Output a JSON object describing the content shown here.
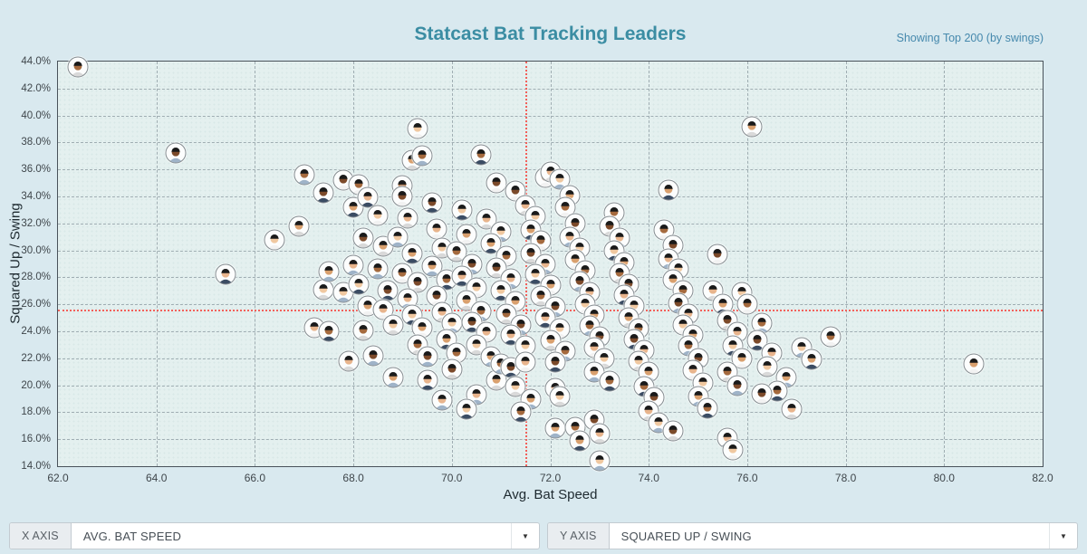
{
  "header": {
    "title": "Statcast Bat Tracking Leaders",
    "subtitle": "Showing Top 200 (by swings)",
    "title_color": "#3b8da3",
    "subtitle_color": "#4689ad"
  },
  "controls": {
    "x_axis": {
      "label": "X AXIS",
      "value": "AVG. BAT SPEED"
    },
    "y_axis": {
      "label": "Y AXIS",
      "value": "SQUARED UP / SWING"
    }
  },
  "chart_data": {
    "type": "scatter",
    "title": "Statcast Bat Tracking Leaders",
    "xlabel": "Avg. Bat Speed",
    "ylabel": "Squared Up / Swing",
    "xlim": [
      62,
      82
    ],
    "ylim": [
      14,
      44
    ],
    "x_ticks": [
      "62.0",
      "64.0",
      "66.0",
      "68.0",
      "70.0",
      "72.0",
      "74.0",
      "76.0",
      "78.0",
      "80.0",
      "82.0"
    ],
    "y_ticks": [
      "44.0%",
      "42.0%",
      "40.0%",
      "38.0%",
      "36.0%",
      "34.0%",
      "32.0%",
      "30.0%",
      "28.0%",
      "26.0%",
      "24.0%",
      "22.0%",
      "20.0%",
      "18.0%",
      "16.0%",
      "14.0%"
    ],
    "grid": true,
    "legend": "none",
    "marker": "player-headshot-circle",
    "mean_lines": {
      "x": 71.5,
      "y": 25.6,
      "color": "#f2605a",
      "style": "dotted"
    },
    "points": [
      [
        62.4,
        43.6
      ],
      [
        64.4,
        37.2
      ],
      [
        65.4,
        28.2
      ],
      [
        66.4,
        30.8
      ],
      [
        66.9,
        31.8
      ],
      [
        67.0,
        35.6
      ],
      [
        67.4,
        34.3
      ],
      [
        67.2,
        24.3
      ],
      [
        67.4,
        27.1
      ],
      [
        67.5,
        28.4
      ],
      [
        67.5,
        24.0
      ],
      [
        67.8,
        35.2
      ],
      [
        67.9,
        21.8
      ],
      [
        67.8,
        26.9
      ],
      [
        68.0,
        33.2
      ],
      [
        68.1,
        34.9
      ],
      [
        68.2,
        30.9
      ],
      [
        68.0,
        28.9
      ],
      [
        68.1,
        27.5
      ],
      [
        68.3,
        25.9
      ],
      [
        68.2,
        24.1
      ],
      [
        68.4,
        22.2
      ],
      [
        68.3,
        33.9
      ],
      [
        68.5,
        32.6
      ],
      [
        68.6,
        30.3
      ],
      [
        68.5,
        28.6
      ],
      [
        68.7,
        27.0
      ],
      [
        68.6,
        25.6
      ],
      [
        68.8,
        24.5
      ],
      [
        68.8,
        20.6
      ],
      [
        69.0,
        34.8
      ],
      [
        69.0,
        34.0
      ],
      [
        69.1,
        32.4
      ],
      [
        68.9,
        31.0
      ],
      [
        69.2,
        29.8
      ],
      [
        69.0,
        28.3
      ],
      [
        69.3,
        27.6
      ],
      [
        69.1,
        26.4
      ],
      [
        69.2,
        25.2
      ],
      [
        69.4,
        24.3
      ],
      [
        69.3,
        23.0
      ],
      [
        69.5,
        22.1
      ],
      [
        69.5,
        20.4
      ],
      [
        69.3,
        39.0
      ],
      [
        69.2,
        36.7
      ],
      [
        69.4,
        37.0
      ],
      [
        69.6,
        33.5
      ],
      [
        69.7,
        31.6
      ],
      [
        69.8,
        30.2
      ],
      [
        69.6,
        28.8
      ],
      [
        69.9,
        27.8
      ],
      [
        69.7,
        26.6
      ],
      [
        69.8,
        25.4
      ],
      [
        70.0,
        24.6
      ],
      [
        69.9,
        23.4
      ],
      [
        70.1,
        22.4
      ],
      [
        70.0,
        21.2
      ],
      [
        70.5,
        19.3
      ],
      [
        70.2,
        33.0
      ],
      [
        70.3,
        31.2
      ],
      [
        70.1,
        29.9
      ],
      [
        70.4,
        29.0
      ],
      [
        70.2,
        28.1
      ],
      [
        70.5,
        27.2
      ],
      [
        70.3,
        26.3
      ],
      [
        70.6,
        25.5
      ],
      [
        70.4,
        24.7
      ],
      [
        70.7,
        23.9
      ],
      [
        70.5,
        23.0
      ],
      [
        70.8,
        22.1
      ],
      [
        70.6,
        37.1
      ],
      [
        70.9,
        35.0
      ],
      [
        70.7,
        32.3
      ],
      [
        71.0,
        31.4
      ],
      [
        70.8,
        30.5
      ],
      [
        71.1,
        29.6
      ],
      [
        70.9,
        28.7
      ],
      [
        71.2,
        27.9
      ],
      [
        71.0,
        27.0
      ],
      [
        71.3,
        26.2
      ],
      [
        71.1,
        25.3
      ],
      [
        71.4,
        24.5
      ],
      [
        71.2,
        23.7
      ],
      [
        71.5,
        22.9
      ],
      [
        70.9,
        20.4
      ],
      [
        71.0,
        21.6
      ],
      [
        71.2,
        21.3
      ],
      [
        71.5,
        21.7
      ],
      [
        71.3,
        19.9
      ],
      [
        71.6,
        19.0
      ],
      [
        71.4,
        18.0
      ],
      [
        71.3,
        34.4
      ],
      [
        71.5,
        33.3
      ],
      [
        71.7,
        32.5
      ],
      [
        71.6,
        31.5
      ],
      [
        71.8,
        30.7
      ],
      [
        71.6,
        29.8
      ],
      [
        71.9,
        29.0
      ],
      [
        71.7,
        28.2
      ],
      [
        72.0,
        27.4
      ],
      [
        71.8,
        26.6
      ],
      [
        72.1,
        25.8
      ],
      [
        71.9,
        25.0
      ],
      [
        72.2,
        24.2
      ],
      [
        72.0,
        23.3
      ],
      [
        72.3,
        22.5
      ],
      [
        72.1,
        21.7
      ],
      [
        72.1,
        19.8
      ],
      [
        72.2,
        19.2
      ],
      [
        72.1,
        16.8
      ],
      [
        72.5,
        16.9
      ],
      [
        71.9,
        35.4
      ],
      [
        72.0,
        35.8
      ],
      [
        72.2,
        35.3
      ],
      [
        72.4,
        34.1
      ],
      [
        72.3,
        33.2
      ],
      [
        72.5,
        32.0
      ],
      [
        72.4,
        31.0
      ],
      [
        72.6,
        30.2
      ],
      [
        72.5,
        29.3
      ],
      [
        72.7,
        28.5
      ],
      [
        72.6,
        27.7
      ],
      [
        72.8,
        26.9
      ],
      [
        72.7,
        26.0
      ],
      [
        72.9,
        25.2
      ],
      [
        72.8,
        24.4
      ],
      [
        73.0,
        23.6
      ],
      [
        72.9,
        22.8
      ],
      [
        73.1,
        22.0
      ],
      [
        72.9,
        21.0
      ],
      [
        73.2,
        20.3
      ],
      [
        72.9,
        17.4
      ],
      [
        73.0,
        16.4
      ],
      [
        73.0,
        14.4
      ],
      [
        72.6,
        15.9
      ],
      [
        73.3,
        32.8
      ],
      [
        73.2,
        31.8
      ],
      [
        73.4,
        30.9
      ],
      [
        73.3,
        30.0
      ],
      [
        73.5,
        29.1
      ],
      [
        73.4,
        28.3
      ],
      [
        73.6,
        27.5
      ],
      [
        73.5,
        26.7
      ],
      [
        73.7,
        25.9
      ],
      [
        73.6,
        25.0
      ],
      [
        73.8,
        24.2
      ],
      [
        73.7,
        23.4
      ],
      [
        73.9,
        22.6
      ],
      [
        73.8,
        21.8
      ],
      [
        74.0,
        21.0
      ],
      [
        73.9,
        19.9
      ],
      [
        74.1,
        19.1
      ],
      [
        74.0,
        18.1
      ],
      [
        74.2,
        17.2
      ],
      [
        74.4,
        34.5
      ],
      [
        74.3,
        31.5
      ],
      [
        74.5,
        30.4
      ],
      [
        74.4,
        29.4
      ],
      [
        74.6,
        28.6
      ],
      [
        74.5,
        27.8
      ],
      [
        74.7,
        27.0
      ],
      [
        74.6,
        26.1
      ],
      [
        74.8,
        25.3
      ],
      [
        74.7,
        24.5
      ],
      [
        74.9,
        23.7
      ],
      [
        74.8,
        22.9
      ],
      [
        75.0,
        22.0
      ],
      [
        74.9,
        21.1
      ],
      [
        75.1,
        20.2
      ],
      [
        75.0,
        19.2
      ],
      [
        75.2,
        18.3
      ],
      [
        75.4,
        29.7
      ],
      [
        75.3,
        27.0
      ],
      [
        75.9,
        26.9
      ],
      [
        75.5,
        26.0
      ],
      [
        76.0,
        26.0
      ],
      [
        75.6,
        24.8
      ],
      [
        75.8,
        23.9
      ],
      [
        75.7,
        22.9
      ],
      [
        75.9,
        22.0
      ],
      [
        75.6,
        21.0
      ],
      [
        75.8,
        20.0
      ],
      [
        75.6,
        16.1
      ],
      [
        75.7,
        15.2
      ],
      [
        76.1,
        39.2
      ],
      [
        76.3,
        24.6
      ],
      [
        76.2,
        23.3
      ],
      [
        76.5,
        22.4
      ],
      [
        76.4,
        21.4
      ],
      [
        76.8,
        20.6
      ],
      [
        76.6,
        19.6
      ],
      [
        76.3,
        19.4
      ],
      [
        76.9,
        18.2
      ],
      [
        77.1,
        22.8
      ],
      [
        77.3,
        21.9
      ],
      [
        77.7,
        23.6
      ],
      [
        74.5,
        16.6
      ],
      [
        69.8,
        18.9
      ],
      [
        70.3,
        18.2
      ],
      [
        80.6,
        21.6
      ]
    ]
  },
  "style": {
    "avatar": {
      "ring_color": "#858d91",
      "cap_colors": [
        "#19305e",
        "#b3202c",
        "#0d4f97",
        "#1a1a1a",
        "#7a1c22",
        "#123a78",
        "#c8102e"
      ],
      "skin_tones": [
        "#f0c8a0",
        "#d9a06e",
        "#a56a3e",
        "#7c4a2a",
        "#e8b48c"
      ],
      "jersey_colors": [
        "#f2f2f2",
        "#d9d9d9",
        "#9fb3c8",
        "#3b4c63"
      ]
    }
  }
}
